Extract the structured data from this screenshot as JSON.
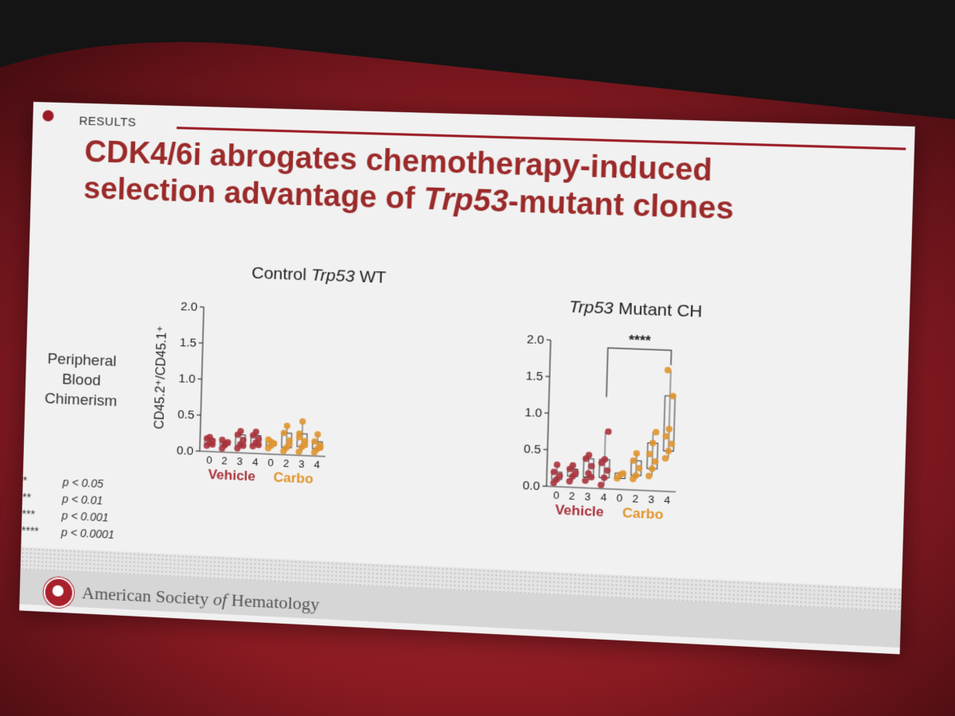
{
  "slide": {
    "section": "RESULTS",
    "title_line1": "CDK4/6i abrogates chemotherapy-induced",
    "title_line2": "selection advantage of ",
    "title_italic": "Trp53",
    "title_line2_end": "-mutant clones",
    "panel1_title_a": "Control ",
    "panel1_title_italic": "Trp53",
    "panel1_title_b": " WT",
    "panel2_title_italic": "Trp53",
    "panel2_title_b": " Mutant CH",
    "side_label": [
      "Peripheral",
      "Blood",
      "Chimerism"
    ],
    "significance_legend": [
      {
        "stars": "*",
        "p": "p < 0.05"
      },
      {
        "stars": "**",
        "p": "p < 0.01"
      },
      {
        "stars": "***",
        "p": "p < 0.001"
      },
      {
        "stars": "****",
        "p": "p < 0.0001"
      }
    ],
    "footer_a": "American Society ",
    "footer_of": "of",
    "footer_b": " Hematology"
  },
  "colors": {
    "vehicle": "#a8323c",
    "carbo": "#e0952f",
    "title": "#9b2a2a",
    "accent": "#9b1c26",
    "projector_red": "#8a1a22"
  },
  "chart_data": [
    {
      "type": "scatter",
      "title": "Control Trp53 WT",
      "ylabel": "CD45.2⁺/CD45.1⁺",
      "ylim": [
        0,
        2.0
      ],
      "yticks": [
        "0.0",
        "0.5",
        "1.0",
        "1.5",
        "2.0"
      ],
      "categories": [
        "0",
        "2",
        "3",
        "4",
        "0",
        "2",
        "3",
        "4"
      ],
      "groups": [
        {
          "name": "Vehicle",
          "span": [
            0,
            3
          ]
        },
        {
          "name": "Carbo",
          "span": [
            4,
            7
          ]
        }
      ],
      "series": [
        {
          "group": "Vehicle",
          "x": "0",
          "values": [
            0.08,
            0.12,
            0.15,
            0.18,
            0.2,
            0.1
          ]
        },
        {
          "group": "Vehicle",
          "x": "2",
          "values": [
            0.05,
            0.1,
            0.14,
            0.17,
            0.12
          ]
        },
        {
          "group": "Vehicle",
          "x": "3",
          "values": [
            0.06,
            0.12,
            0.18,
            0.25,
            0.3,
            0.1
          ]
        },
        {
          "group": "Vehicle",
          "x": "4",
          "values": [
            0.1,
            0.15,
            0.2,
            0.25,
            0.3,
            0.12
          ]
        },
        {
          "group": "Carbo",
          "x": "0",
          "values": [
            0.08,
            0.12,
            0.15,
            0.2,
            0.17
          ]
        },
        {
          "group": "Carbo",
          "x": "2",
          "values": [
            0.05,
            0.1,
            0.2,
            0.3,
            0.4,
            0.15
          ]
        },
        {
          "group": "Carbo",
          "x": "3",
          "values": [
            0.05,
            0.12,
            0.2,
            0.3,
            0.47,
            0.15,
            0.25
          ]
        },
        {
          "group": "Carbo",
          "x": "4",
          "values": [
            0.05,
            0.1,
            0.15,
            0.2,
            0.3,
            0.12
          ]
        }
      ],
      "annotations": []
    },
    {
      "type": "scatter",
      "title": "Trp53 Mutant CH",
      "ylim": [
        0,
        2.0
      ],
      "yticks": [
        "0.0",
        "0.5",
        "1.0",
        "1.5",
        "2.0"
      ],
      "categories": [
        "0",
        "2",
        "3",
        "4",
        "0",
        "2",
        "3",
        "4"
      ],
      "groups": [
        {
          "name": "Vehicle",
          "span": [
            0,
            3
          ]
        },
        {
          "name": "Carbo",
          "span": [
            4,
            7
          ]
        }
      ],
      "series": [
        {
          "group": "Vehicle",
          "x": "0",
          "values": [
            0.05,
            0.1,
            0.15,
            0.2,
            0.3
          ]
        },
        {
          "group": "Vehicle",
          "x": "2",
          "values": [
            0.08,
            0.15,
            0.2,
            0.25,
            0.3
          ]
        },
        {
          "group": "Vehicle",
          "x": "3",
          "values": [
            0.1,
            0.2,
            0.3,
            0.4,
            0.45,
            0.15
          ]
        },
        {
          "group": "Vehicle",
          "x": "4",
          "values": [
            0.05,
            0.15,
            0.25,
            0.35,
            0.4,
            0.78
          ]
        },
        {
          "group": "Carbo",
          "x": "0",
          "values": [
            0.15,
            0.2,
            0.22
          ]
        },
        {
          "group": "Carbo",
          "x": "2",
          "values": [
            0.15,
            0.2,
            0.3,
            0.4,
            0.5
          ]
        },
        {
          "group": "Carbo",
          "x": "3",
          "values": [
            0.2,
            0.3,
            0.4,
            0.5,
            0.65,
            0.8
          ]
        },
        {
          "group": "Carbo",
          "x": "4",
          "values": [
            0.45,
            0.55,
            0.65,
            0.75,
            0.85,
            1.3,
            1.65
          ]
        }
      ],
      "annotations": [
        {
          "text": "****",
          "from": "Vehicle 4",
          "to": "Carbo 4"
        }
      ]
    }
  ]
}
